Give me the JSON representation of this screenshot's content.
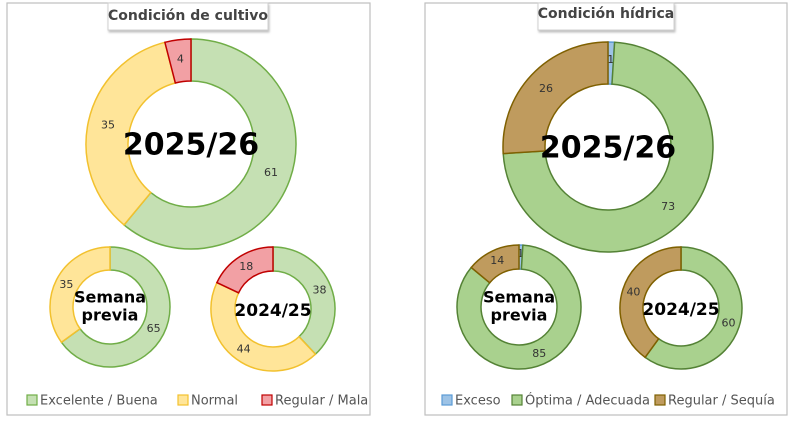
{
  "chart_data": [
    {
      "type": "donut",
      "title": "Condición de cultivo",
      "legend": [
        "Excelente / Buena",
        "Normal",
        "Regular / Mala"
      ],
      "colors": {
        "fill": [
          "#c5e0b3",
          "#ffe599",
          "#f2a0a4"
        ],
        "stroke": [
          "#70ad47",
          "#f2c12e",
          "#c00000"
        ]
      },
      "legend_placement": "bottom",
      "donuts": [
        {
          "label": "2025/26",
          "values": [
            61,
            35,
            4
          ]
        },
        {
          "label": "Semana previa",
          "label_lines": [
            "Semana",
            "previa"
          ],
          "values": [
            65,
            35,
            0
          ]
        },
        {
          "label": "2024/25",
          "values": [
            38,
            44,
            18
          ]
        }
      ]
    },
    {
      "type": "donut",
      "title": "Condición hídrica",
      "legend": [
        "Exceso",
        "Óptima / Adecuada",
        "Regular / Sequía"
      ],
      "colors": {
        "fill": [
          "#9dc3e6",
          "#a9d18e",
          "#bf9b5e"
        ],
        "stroke": [
          "#5b9bd5",
          "#548235",
          "#7f6000"
        ]
      },
      "legend_placement": "bottom",
      "donuts": [
        {
          "label": "2025/26",
          "values": [
            1,
            73,
            26
          ]
        },
        {
          "label": "Semana previa",
          "label_lines": [
            "Semana",
            "previa"
          ],
          "values": [
            1,
            85,
            14
          ]
        },
        {
          "label": "2024/25",
          "values": [
            0,
            60,
            40
          ]
        }
      ]
    }
  ]
}
